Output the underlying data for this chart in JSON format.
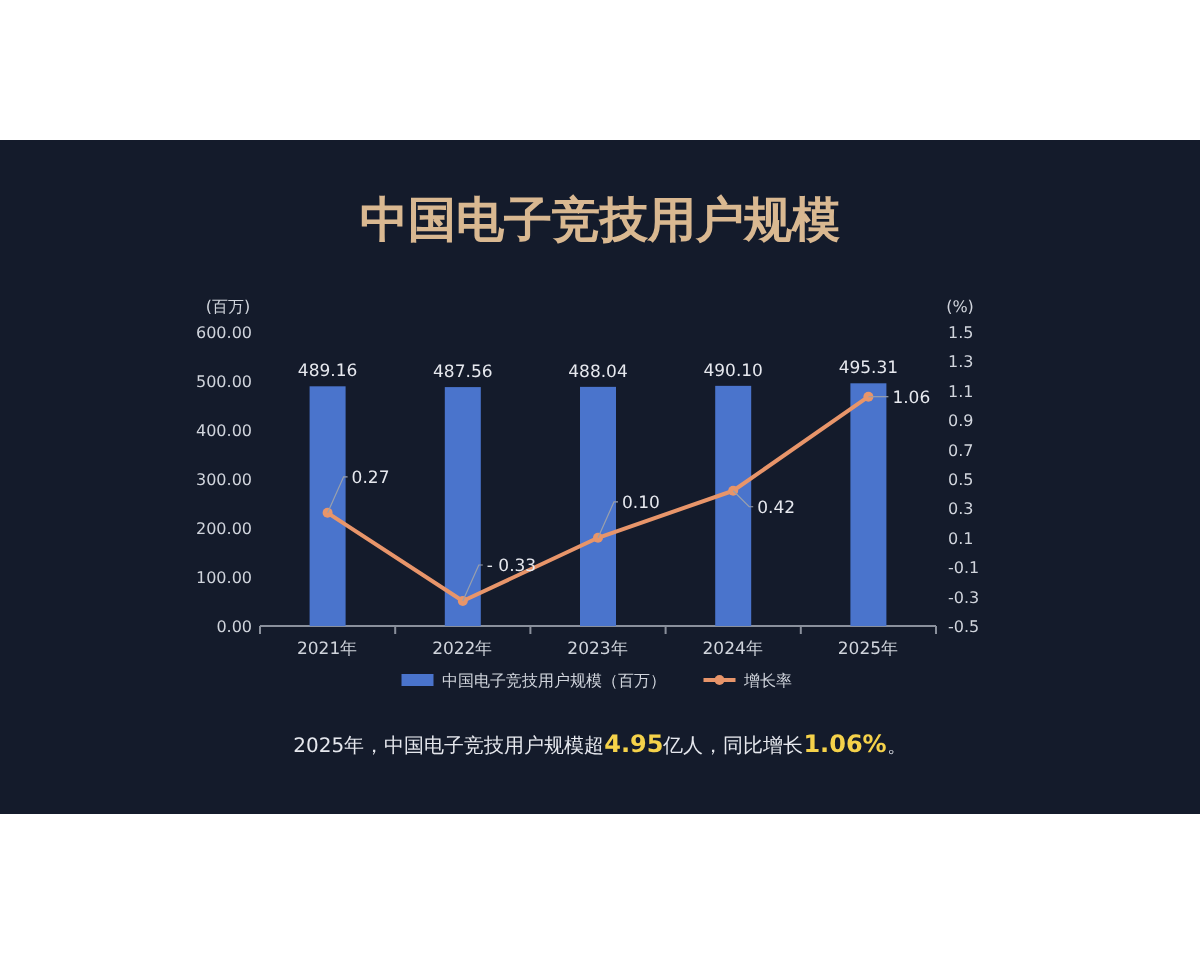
{
  "chart_data": {
    "type": "bar",
    "title": "中国电子竞技用户规模",
    "categories": [
      "2021年",
      "2022年",
      "2023年",
      "2024年",
      "2025年"
    ],
    "series": [
      {
        "name": "中国电子竞技用户规模（百万）",
        "color": "#4a74cc",
        "values": [
          489.16,
          487.56,
          488.04,
          490.1,
          495.31
        ],
        "value_labels": [
          "489.16",
          "487.56",
          "488.04",
          "490.10",
          "495.31"
        ]
      },
      {
        "name": "增长率",
        "type": "line",
        "axis": "y2",
        "color": "#e8956a",
        "marker": "circle",
        "values": [
          0.27,
          -0.33,
          0.1,
          0.42,
          1.06
        ],
        "value_labels": [
          "0.27",
          "- 0.33",
          "0.10",
          "0.42",
          "1.06"
        ]
      }
    ],
    "ylabel": "(百万)",
    "y2label": "(%)",
    "ylim": [
      0,
      600
    ],
    "yticks": [
      {
        "value": 0,
        "label": "0.00"
      },
      {
        "value": 100,
        "label": "100.00"
      },
      {
        "value": 200,
        "label": "200.00"
      },
      {
        "value": 300,
        "label": "300.00"
      },
      {
        "value": 400,
        "label": "400.00"
      },
      {
        "value": 500,
        "label": "500.00"
      },
      {
        "value": 600,
        "label": "600.00"
      }
    ],
    "y2lim": [
      -0.5,
      1.5
    ],
    "y2ticks": [
      -0.5,
      -0.3,
      -0.1,
      0.1,
      0.3,
      0.5,
      0.7,
      0.9,
      1.1,
      1.3,
      1.5
    ],
    "legend": "bottom",
    "annotations": [
      "2025年，中国电子竞技用户规模超4.95亿人，同比增长1.06%。"
    ]
  }
}
